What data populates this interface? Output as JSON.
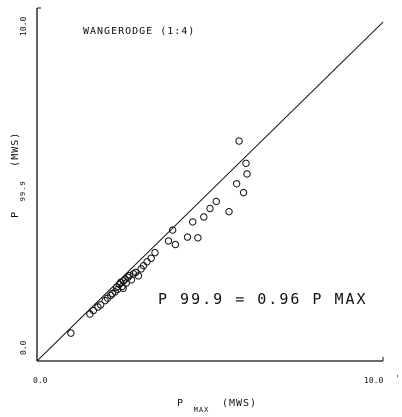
{
  "chart_data": {
    "type": "scatter",
    "title": "WANGERODGE (1:4)",
    "xlabel": {
      "main": "P",
      "subscript": "MAX",
      "unit": "(MWS)"
    },
    "ylabel": {
      "main": "P",
      "subscript": "99.9",
      "unit": "(MWS)"
    },
    "xlim": [
      0,
      10
    ],
    "ylim": [
      0,
      10
    ],
    "x_tick_labels": [
      "0.0",
      "10.0"
    ],
    "y_tick_labels": [
      "0.0",
      "10.0"
    ],
    "x_edge_mark": "'",
    "grid": false,
    "annotation": "P 99.9 = 0.96 P MAX",
    "fit_line": {
      "slope": 0.96,
      "intercept": 0
    },
    "marker": "circle",
    "points": [
      [
        0.98,
        0.79
      ],
      [
        1.53,
        1.33
      ],
      [
        1.63,
        1.43
      ],
      [
        1.76,
        1.53
      ],
      [
        1.84,
        1.59
      ],
      [
        1.97,
        1.71
      ],
      [
        2.04,
        1.78
      ],
      [
        2.13,
        1.86
      ],
      [
        2.18,
        1.91
      ],
      [
        2.26,
        1.96
      ],
      [
        2.3,
        2.09
      ],
      [
        2.33,
        2.03
      ],
      [
        2.38,
        2.17
      ],
      [
        2.42,
        2.23
      ],
      [
        2.46,
        2.11
      ],
      [
        2.5,
        2.27
      ],
      [
        2.55,
        2.32
      ],
      [
        2.58,
        2.21
      ],
      [
        2.63,
        2.37
      ],
      [
        2.67,
        2.42
      ],
      [
        2.73,
        2.3
      ],
      [
        2.79,
        2.47
      ],
      [
        2.85,
        2.51
      ],
      [
        2.93,
        2.41
      ],
      [
        3.01,
        2.61
      ],
      [
        3.08,
        2.7
      ],
      [
        3.18,
        2.81
      ],
      [
        3.3,
        2.91
      ],
      [
        3.41,
        3.07
      ],
      [
        3.8,
        3.4
      ],
      [
        4.0,
        3.3
      ],
      [
        4.35,
        3.51
      ],
      [
        4.5,
        3.94
      ],
      [
        4.65,
        3.49
      ],
      [
        4.82,
        4.08
      ],
      [
        5.0,
        4.32
      ],
      [
        5.18,
        4.52
      ],
      [
        5.55,
        4.23
      ],
      [
        5.77,
        5.02
      ],
      [
        5.97,
        4.77
      ],
      [
        6.04,
        5.6
      ],
      [
        6.07,
        5.3
      ],
      [
        5.84,
        6.23
      ],
      [
        3.92,
        3.71
      ],
      [
        2.49,
        2.06
      ]
    ]
  }
}
